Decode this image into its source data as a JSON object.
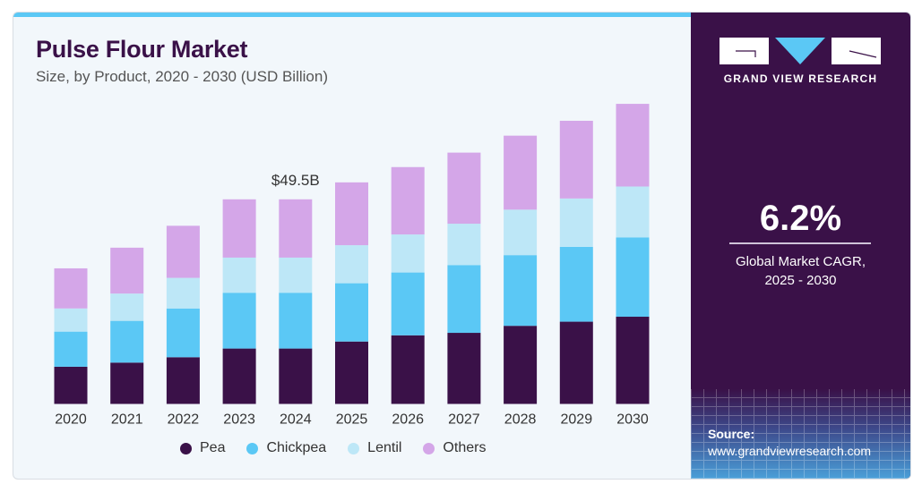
{
  "header": {
    "title": "Pulse Flour Market",
    "subtitle": "Size, by Product, 2020 - 2030 (USD Billion)"
  },
  "brand": {
    "name": "GRAND VIEW RESEARCH"
  },
  "stats": {
    "cagr": "6.2%",
    "cagr_label_line1": "Global Market CAGR,",
    "cagr_label_line2": "2025 - 2030"
  },
  "source": {
    "label": "Source:",
    "url": "www.grandviewresearch.com"
  },
  "colors": {
    "Pea": "#3a1148",
    "Chickpea": "#5bc8f5",
    "Lentil": "#bde7f7",
    "Others": "#d4a6e8",
    "accent": "#5bc8f5"
  },
  "chart_data": {
    "type": "bar",
    "stacked": true,
    "title": "Pulse Flour Market",
    "subtitle": "Size, by Product, 2020 - 2030 (USD Billion)",
    "xlabel": "",
    "ylabel": "USD Billion",
    "ylim": [
      0,
      80
    ],
    "grid": false,
    "legend_position": "bottom",
    "categories": [
      "2020",
      "2021",
      "2022",
      "2023",
      "2024",
      "2025",
      "2026",
      "2027",
      "2028",
      "2029",
      "2030"
    ],
    "series": [
      {
        "name": "Pea",
        "values": [
          9.0,
          10.0,
          11.3,
          13.4,
          13.4,
          15.1,
          16.6,
          17.2,
          18.9,
          19.9,
          21.1
        ]
      },
      {
        "name": "Chickpea",
        "values": [
          8.5,
          10.1,
          11.8,
          13.5,
          13.5,
          14.1,
          15.2,
          16.4,
          17.1,
          18.1,
          19.2
        ]
      },
      {
        "name": "Lentil",
        "values": [
          5.6,
          6.6,
          7.4,
          8.5,
          8.5,
          9.2,
          9.2,
          10.0,
          11.0,
          11.7,
          12.3
        ]
      },
      {
        "name": "Others",
        "values": [
          9.7,
          11.1,
          12.6,
          14.1,
          14.1,
          15.2,
          16.3,
          17.2,
          17.9,
          18.8,
          20.0
        ]
      }
    ],
    "annotations": [
      {
        "category": "2024",
        "text": "$49.5B"
      }
    ]
  }
}
